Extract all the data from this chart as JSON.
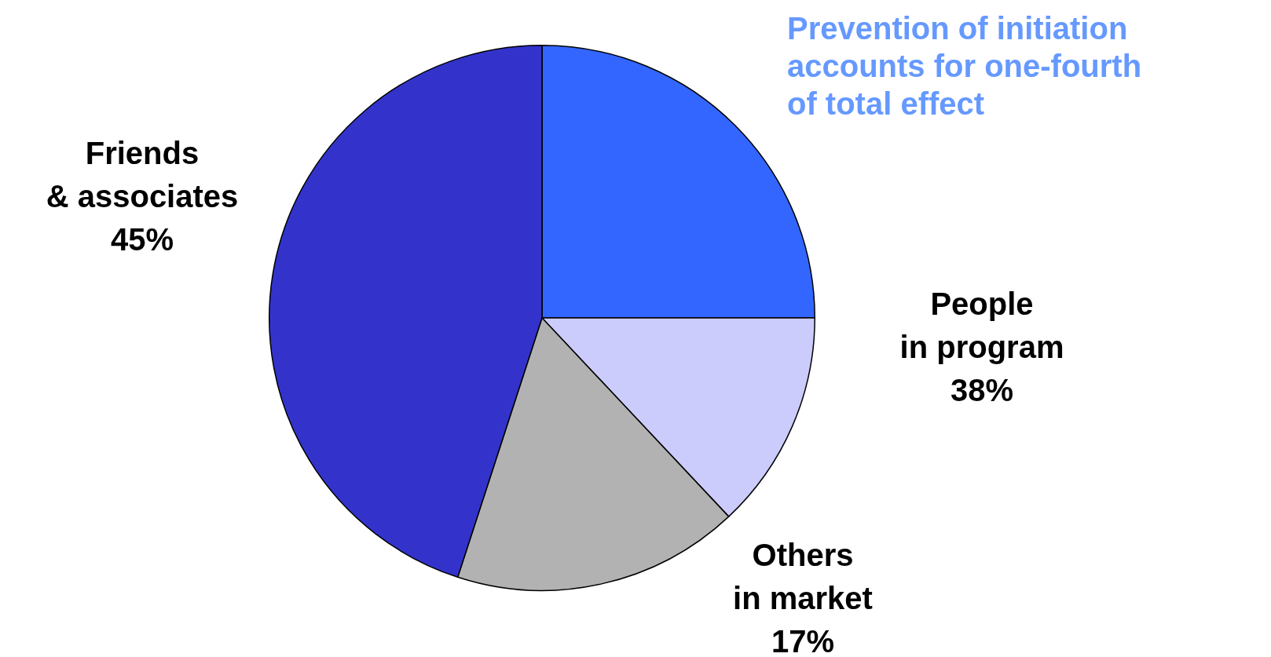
{
  "chart_data": {
    "type": "pie",
    "categories": [
      null,
      null,
      "Others\nin market",
      "Friends\n& associates"
    ],
    "values": [
      25,
      13,
      17,
      45
    ],
    "colors": [
      "#3366ff",
      "#ccccfc",
      "#b2b2b2",
      "#3333cc"
    ],
    "value_labels": [
      null,
      null,
      "17%",
      "45%"
    ],
    "annotations": [
      "Prevention of initiation\naccounts for one-fourth\nof total effect",
      "People\nin program\n38%"
    ],
    "legend": false
  }
}
